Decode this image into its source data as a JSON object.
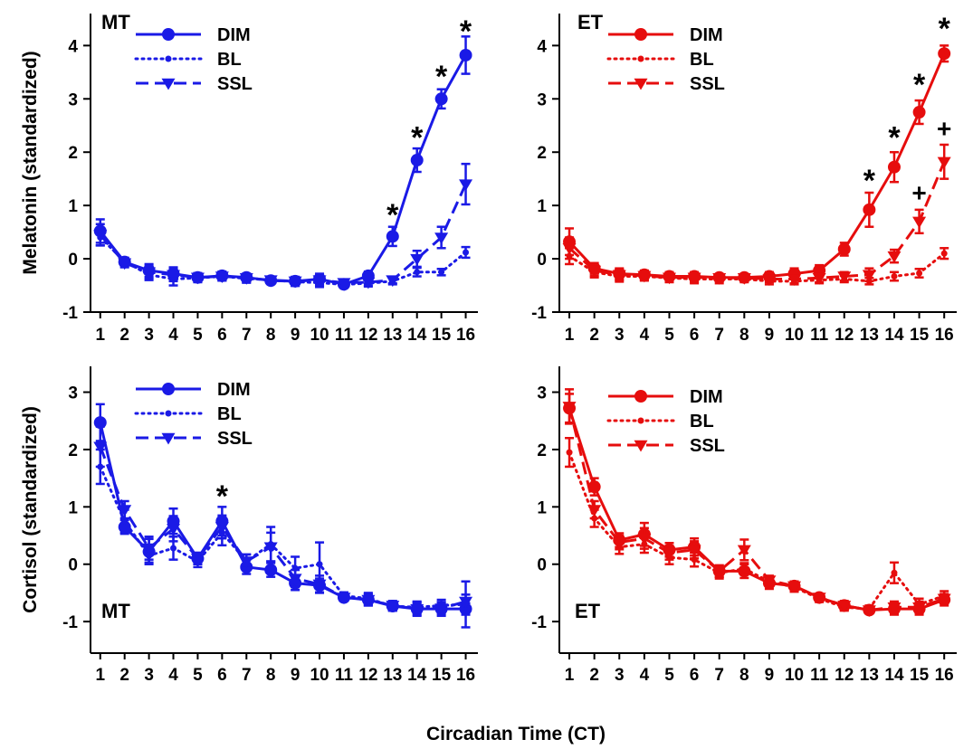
{
  "figure": {
    "x_axis_title": "Circadian Time (CT)"
  },
  "chart_data": [
    {
      "type": "line",
      "panel_label": "MT",
      "ylabel": "Melatonin (standardized)",
      "xlabel": "",
      "x": [
        1,
        2,
        3,
        4,
        5,
        6,
        7,
        8,
        9,
        10,
        11,
        12,
        13,
        14,
        15,
        16
      ],
      "x_ticks": [
        "1",
        "2",
        "3",
        "4",
        "5",
        "6",
        "7",
        "8",
        "9",
        "10",
        "11",
        "12",
        "13",
        "14",
        "15",
        "16"
      ],
      "ylim": [
        -1,
        4.6
      ],
      "y_ticks": [
        "-1",
        "0",
        "1",
        "2",
        "3",
        "4"
      ],
      "color": "#1a1ae6",
      "legend": [
        "DIM",
        "BL",
        "SSL"
      ],
      "legend_position": "top-left",
      "series": [
        {
          "name": "DIM",
          "style": "solid",
          "marker": "circle",
          "values": [
            0.52,
            -0.06,
            -0.22,
            -0.28,
            -0.35,
            -0.32,
            -0.35,
            -0.41,
            -0.42,
            -0.38,
            -0.48,
            -0.32,
            0.42,
            1.85,
            3.0,
            3.82
          ],
          "errors": [
            0.22,
            0.08,
            0.12,
            0.12,
            0.08,
            0.08,
            0.06,
            0.06,
            0.08,
            0.1,
            0.06,
            0.08,
            0.18,
            0.22,
            0.18,
            0.35
          ]
        },
        {
          "name": "BL",
          "style": "dotted",
          "marker": "small-circle",
          "values": [
            0.4,
            -0.05,
            -0.3,
            -0.38,
            -0.36,
            -0.33,
            -0.37,
            -0.4,
            -0.43,
            -0.45,
            -0.48,
            -0.46,
            -0.42,
            -0.25,
            -0.25,
            0.12
          ],
          "errors": [
            0.15,
            0.06,
            0.1,
            0.12,
            0.08,
            0.08,
            0.08,
            0.06,
            0.08,
            0.08,
            0.06,
            0.06,
            0.06,
            0.08,
            0.06,
            0.1
          ]
        },
        {
          "name": "SSL",
          "style": "dashed",
          "marker": "triangle-down",
          "values": [
            0.45,
            -0.08,
            -0.25,
            -0.3,
            -0.35,
            -0.33,
            -0.36,
            -0.4,
            -0.42,
            -0.4,
            -0.45,
            -0.44,
            -0.4,
            0.0,
            0.4,
            1.4
          ],
          "errors": [
            0.2,
            0.08,
            0.12,
            0.12,
            0.08,
            0.08,
            0.08,
            0.06,
            0.08,
            0.1,
            0.06,
            0.06,
            0.06,
            0.15,
            0.2,
            0.38
          ]
        }
      ],
      "annotations": [
        {
          "text": "*",
          "x": 13,
          "y": 1.0
        },
        {
          "text": "*",
          "x": 14,
          "y": 2.45
        },
        {
          "text": "*",
          "x": 15,
          "y": 3.6
        },
        {
          "text": "*",
          "x": 16,
          "y": 4.45
        }
      ]
    },
    {
      "type": "line",
      "panel_label": "ET",
      "ylabel": "",
      "xlabel": "",
      "x": [
        1,
        2,
        3,
        4,
        5,
        6,
        7,
        8,
        9,
        10,
        11,
        12,
        13,
        14,
        15,
        16
      ],
      "x_ticks": [
        "1",
        "2",
        "3",
        "4",
        "5",
        "6",
        "7",
        "8",
        "9",
        "10",
        "11",
        "12",
        "13",
        "14",
        "15",
        "16"
      ],
      "ylim": [
        -1,
        4.6
      ],
      "y_ticks": [
        "-1",
        "0",
        "1",
        "2",
        "3",
        "4"
      ],
      "color": "#e60d0d",
      "legend": [
        "DIM",
        "BL",
        "SSL"
      ],
      "legend_position": "top-left",
      "series": [
        {
          "name": "DIM",
          "style": "solid",
          "marker": "circle",
          "values": [
            0.32,
            -0.18,
            -0.28,
            -0.3,
            -0.33,
            -0.33,
            -0.35,
            -0.35,
            -0.33,
            -0.28,
            -0.22,
            0.18,
            0.92,
            1.72,
            2.75,
            3.85
          ],
          "errors": [
            0.25,
            0.1,
            0.1,
            0.08,
            0.08,
            0.08,
            0.06,
            0.06,
            0.08,
            0.1,
            0.1,
            0.12,
            0.32,
            0.28,
            0.22,
            0.15
          ]
        },
        {
          "name": "BL",
          "style": "dotted",
          "marker": "small-circle",
          "values": [
            0.05,
            -0.25,
            -0.33,
            -0.33,
            -0.36,
            -0.38,
            -0.38,
            -0.38,
            -0.42,
            -0.42,
            -0.4,
            -0.38,
            -0.42,
            -0.33,
            -0.27,
            0.1
          ],
          "errors": [
            0.15,
            0.1,
            0.1,
            0.08,
            0.08,
            0.08,
            0.08,
            0.06,
            0.06,
            0.06,
            0.06,
            0.06,
            0.06,
            0.08,
            0.08,
            0.1
          ]
        },
        {
          "name": "SSL",
          "style": "dashed",
          "marker": "triangle-down",
          "values": [
            0.2,
            -0.22,
            -0.3,
            -0.32,
            -0.35,
            -0.35,
            -0.36,
            -0.36,
            -0.38,
            -0.38,
            -0.36,
            -0.33,
            -0.3,
            0.05,
            0.7,
            1.82
          ],
          "errors": [
            0.2,
            0.1,
            0.1,
            0.08,
            0.08,
            0.08,
            0.06,
            0.06,
            0.06,
            0.08,
            0.08,
            0.08,
            0.12,
            0.12,
            0.22,
            0.32
          ]
        }
      ],
      "annotations": [
        {
          "text": "*",
          "x": 13,
          "y": 1.65
        },
        {
          "text": "*",
          "x": 14,
          "y": 2.45
        },
        {
          "text": "*",
          "x": 15,
          "y": 3.45
        },
        {
          "text": "*",
          "x": 16,
          "y": 4.5
        },
        {
          "text": "+",
          "x": 15,
          "y": 1.25
        },
        {
          "text": "+",
          "x": 16,
          "y": 2.45
        }
      ]
    },
    {
      "type": "line",
      "panel_label": "MT",
      "ylabel": "Cortisol (standardized)",
      "xlabel": "",
      "x": [
        1,
        2,
        3,
        4,
        5,
        6,
        7,
        8,
        9,
        10,
        11,
        12,
        13,
        14,
        15,
        16
      ],
      "x_ticks": [
        "1",
        "2",
        "3",
        "4",
        "5",
        "6",
        "7",
        "8",
        "9",
        "10",
        "11",
        "12",
        "13",
        "14",
        "15",
        "16"
      ],
      "ylim": [
        -1.55,
        3.45
      ],
      "y_ticks": [
        "-1",
        "0",
        "1",
        "2",
        "3"
      ],
      "color": "#1a1ae6",
      "legend": [
        "DIM",
        "BL",
        "SSL"
      ],
      "legend_position": "top-left",
      "series": [
        {
          "name": "DIM",
          "style": "solid",
          "marker": "circle",
          "values": [
            2.47,
            0.65,
            0.22,
            0.75,
            0.1,
            0.75,
            -0.05,
            -0.1,
            -0.33,
            -0.37,
            -0.58,
            -0.62,
            -0.73,
            -0.78,
            -0.78,
            -0.78
          ],
          "errors": [
            0.32,
            0.12,
            0.22,
            0.22,
            0.1,
            0.25,
            0.12,
            0.12,
            0.12,
            0.12,
            0.06,
            0.1,
            0.08,
            0.12,
            0.12,
            0.1
          ]
        },
        {
          "name": "BL",
          "style": "dotted",
          "marker": "small-circle",
          "values": [
            1.7,
            0.75,
            0.15,
            0.28,
            0.05,
            0.55,
            0.05,
            0.35,
            -0.07,
            0.0,
            -0.55,
            -0.6,
            -0.73,
            -0.75,
            -0.72,
            -0.7
          ],
          "errors": [
            0.3,
            0.2,
            0.12,
            0.2,
            0.1,
            0.22,
            0.12,
            0.3,
            0.2,
            0.38,
            0.06,
            0.1,
            0.08,
            0.1,
            0.1,
            0.4
          ]
        },
        {
          "name": "SSL",
          "style": "dashed",
          "marker": "triangle-down",
          "values": [
            2.05,
            0.95,
            0.28,
            0.62,
            0.1,
            0.65,
            0.05,
            0.3,
            -0.25,
            -0.35,
            -0.58,
            -0.62,
            -0.72,
            -0.78,
            -0.77,
            -0.65
          ],
          "errors": [
            0.35,
            0.15,
            0.2,
            0.22,
            0.1,
            0.2,
            0.12,
            0.25,
            0.15,
            0.15,
            0.06,
            0.1,
            0.08,
            0.1,
            0.1,
            0.12
          ]
        }
      ],
      "annotations": [
        {
          "text": "*",
          "x": 6,
          "y": 1.35
        }
      ]
    },
    {
      "type": "line",
      "panel_label": "ET",
      "ylabel": "",
      "xlabel": "",
      "x": [
        1,
        2,
        3,
        4,
        5,
        6,
        7,
        8,
        9,
        10,
        11,
        12,
        13,
        14,
        15,
        16
      ],
      "x_ticks": [
        "1",
        "2",
        "3",
        "4",
        "5",
        "6",
        "7",
        "8",
        "9",
        "10",
        "11",
        "12",
        "13",
        "14",
        "15",
        "16"
      ],
      "ylim": [
        -1.55,
        3.45
      ],
      "y_ticks": [
        "-1",
        "0",
        "1",
        "2",
        "3"
      ],
      "color": "#e60d0d",
      "legend": [
        "DIM",
        "BL",
        "SSL"
      ],
      "legend_position": "top-left",
      "series": [
        {
          "name": "DIM",
          "style": "solid",
          "marker": "circle",
          "values": [
            2.72,
            1.35,
            0.42,
            0.52,
            0.25,
            0.3,
            -0.12,
            -0.12,
            -0.33,
            -0.38,
            -0.58,
            -0.72,
            -0.8,
            -0.78,
            -0.78,
            -0.62
          ],
          "errors": [
            0.25,
            0.15,
            0.12,
            0.2,
            0.12,
            0.15,
            0.1,
            0.12,
            0.1,
            0.08,
            0.06,
            0.08,
            0.06,
            0.1,
            0.1,
            0.1
          ]
        },
        {
          "name": "BL",
          "style": "dotted",
          "marker": "small-circle",
          "values": [
            1.95,
            0.8,
            0.3,
            0.35,
            0.12,
            0.08,
            -0.15,
            -0.08,
            -0.3,
            -0.4,
            -0.6,
            -0.75,
            -0.78,
            -0.15,
            -0.7,
            -0.55
          ],
          "errors": [
            0.25,
            0.15,
            0.12,
            0.15,
            0.12,
            0.12,
            0.1,
            0.1,
            0.08,
            0.08,
            0.06,
            0.06,
            0.06,
            0.18,
            0.1,
            0.08
          ]
        },
        {
          "name": "SSL",
          "style": "dashed",
          "marker": "triangle-down",
          "values": [
            2.75,
            0.95,
            0.38,
            0.45,
            0.2,
            0.25,
            -0.12,
            0.25,
            -0.28,
            -0.38,
            -0.58,
            -0.72,
            -0.8,
            -0.75,
            -0.75,
            -0.6
          ],
          "errors": [
            0.3,
            0.15,
            0.12,
            0.18,
            0.12,
            0.15,
            0.1,
            0.18,
            0.08,
            0.08,
            0.06,
            0.06,
            0.06,
            0.1,
            0.1,
            0.08
          ]
        }
      ],
      "annotations": []
    }
  ]
}
